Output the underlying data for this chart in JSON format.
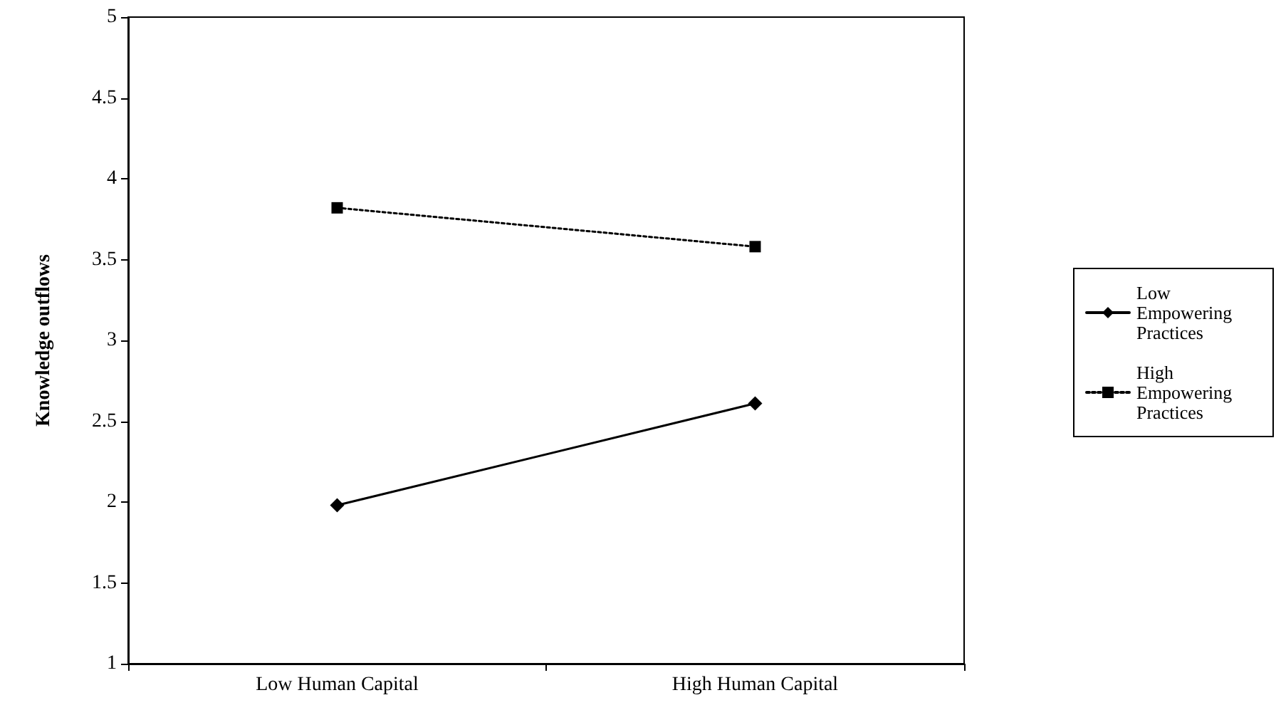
{
  "chart_data": {
    "type": "line",
    "ylabel": "Knowledge outflows",
    "categories": [
      "Low Human Capital",
      "High Human Capital"
    ],
    "series": [
      {
        "name": "Low Empowering Practices",
        "color": "#000000",
        "values": [
          1.98,
          2.61
        ],
        "marker": "diamond",
        "line_style": "solid"
      },
      {
        "name": "High Empowering Practices",
        "color": "#000000",
        "values": [
          3.82,
          3.58
        ],
        "marker": "square",
        "line_style": "dotted"
      }
    ],
    "ylim": [
      1,
      5
    ],
    "yticks": [
      1,
      1.5,
      2,
      2.5,
      3,
      3.5,
      4,
      4.5,
      5
    ],
    "grid": false,
    "legend": "right"
  }
}
